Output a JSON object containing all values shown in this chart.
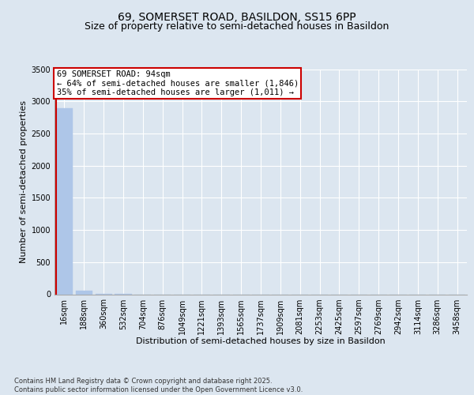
{
  "title_line1": "69, SOMERSET ROAD, BASILDON, SS15 6PP",
  "title_line2": "Size of property relative to semi-detached houses in Basildon",
  "xlabel": "Distribution of semi-detached houses by size in Basildon",
  "ylabel": "Number of semi-detached properties",
  "annotation_title": "69 SOMERSET ROAD: 94sqm",
  "annotation_line2": "← 64% of semi-detached houses are smaller (1,846)",
  "annotation_line3": "35% of semi-detached houses are larger (1,011) →",
  "footer": "Contains HM Land Registry data © Crown copyright and database right 2025.\nContains public sector information licensed under the Open Government Licence v3.0.",
  "categories": [
    "16sqm",
    "188sqm",
    "360sqm",
    "532sqm",
    "704sqm",
    "876sqm",
    "1049sqm",
    "1221sqm",
    "1393sqm",
    "1565sqm",
    "1737sqm",
    "1909sqm",
    "2081sqm",
    "2253sqm",
    "2425sqm",
    "2597sqm",
    "2769sqm",
    "2942sqm",
    "3114sqm",
    "3286sqm",
    "3458sqm"
  ],
  "values": [
    2890,
    50,
    2,
    1,
    0,
    0,
    0,
    0,
    0,
    0,
    0,
    0,
    0,
    0,
    0,
    0,
    0,
    0,
    0,
    0,
    0
  ],
  "bar_color": "#aec6e8",
  "vline_color": "#cc0000",
  "annotation_box_edge_color": "#cc0000",
  "background_color": "#dce6f0",
  "plot_bg_color": "#dce6f0",
  "ylim": [
    0,
    3500
  ],
  "yticks": [
    0,
    500,
    1000,
    1500,
    2000,
    2500,
    3000,
    3500
  ],
  "grid_color": "#ffffff",
  "title_fontsize": 10,
  "subtitle_fontsize": 9,
  "axis_label_fontsize": 8,
  "tick_fontsize": 7,
  "annotation_fontsize": 7.5,
  "footer_fontsize": 6
}
